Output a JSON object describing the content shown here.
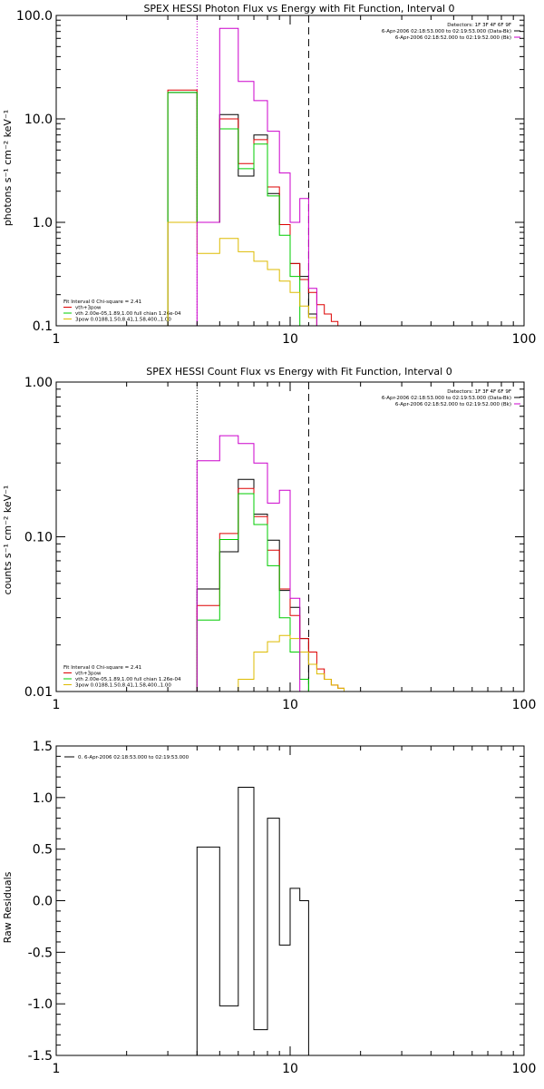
{
  "chart_data": [
    {
      "type": "line",
      "title": "SPEX HESSI Photon Flux vs Energy with Fit Function, Interval 0",
      "ylabel": "photons s⁻¹ cm⁻² keV⁻¹",
      "xlim": [
        1,
        100
      ],
      "ylim": [
        0.1,
        100
      ],
      "xscale": "log",
      "yscale": "log",
      "xticks": [
        "1",
        "10",
        "100"
      ],
      "yticks": [
        "0.1",
        "1.0",
        "10.0",
        "100.0"
      ],
      "ytick_values": [
        0.1,
        1,
        10,
        100
      ],
      "vlines": [
        {
          "x": 4.0,
          "style": "dotted",
          "color": "#cc00cc"
        },
        {
          "x": 12.0,
          "style": "dashed",
          "color": "#000000"
        }
      ],
      "info_lines": [
        "Detectors: 1F 3F 4F 6F 9F",
        "6-Apr-2006 02:18:53.000 to 02:19:53.000 (Data-Bk)",
        "6-Apr-2006 02:18:52.000 to 02:19:52.000 (Bk)"
      ],
      "info_colors": [
        "#000000",
        "#000000",
        "#cc00cc"
      ],
      "fit_lines": [
        "Fit Interval 0   Chi-square = 2.41",
        "vth+3pow",
        "vth 2.00e-05,1.89,1.00  full chian 1.26e-04",
        "3pow 0.0188,1.50,8.41,1.58,400.,1.00"
      ],
      "fit_colors": [
        "#000000",
        "#dd0000",
        "#00cc00",
        "#ddbb00"
      ],
      "edges": [
        3,
        4,
        5,
        6,
        7,
        8,
        9,
        10,
        11,
        12,
        13,
        14,
        15,
        16,
        17,
        18,
        19,
        20
      ],
      "series": [
        {
          "color": "#000000",
          "values": [
            18,
            1,
            11,
            2.8,
            7,
            1.9,
            0.95,
            0.4,
            0.3,
            0.13,
            null,
            null,
            null,
            null,
            null,
            null,
            null
          ]
        },
        {
          "color": "#dd0000",
          "values": [
            19,
            1,
            10,
            3.7,
            6.3,
            2.2,
            0.95,
            0.4,
            0.28,
            0.21,
            0.16,
            0.13,
            0.11,
            null,
            null,
            null,
            null
          ]
        },
        {
          "color": "#00cc00",
          "values": [
            18,
            1,
            8,
            3.3,
            5.7,
            1.8,
            0.75,
            0.3,
            0.1,
            null,
            null,
            null,
            null,
            null,
            null,
            null,
            null
          ]
        },
        {
          "color": "#ddbb00",
          "values": [
            1.0,
            0.5,
            0.7,
            0.52,
            0.42,
            0.35,
            0.27,
            0.21,
            0.155,
            0.12,
            0.1,
            null,
            null,
            null,
            null,
            null,
            null
          ]
        },
        {
          "color": "#cc00cc",
          "values": [
            null,
            1,
            75,
            23,
            15,
            7.6,
            3.0,
            1.0,
            1.7,
            0.23,
            null,
            null,
            null,
            null,
            null,
            null,
            null
          ]
        }
      ]
    },
    {
      "type": "line",
      "title": "SPEX HESSI Count Flux vs Energy with Fit Function, Interval 0",
      "ylabel": "counts s⁻¹ cm⁻² keV⁻¹",
      "xlim": [
        1,
        100
      ],
      "ylim": [
        0.01,
        1
      ],
      "xscale": "log",
      "yscale": "log",
      "xticks": [
        "1",
        "10",
        "100"
      ],
      "yticks": [
        "0.01",
        "0.10",
        "1.00"
      ],
      "ytick_values": [
        0.01,
        0.1,
        1
      ],
      "vlines": [
        {
          "x": 4.0,
          "style": "dotted",
          "color": "#000000"
        },
        {
          "x": 12.0,
          "style": "dashed",
          "color": "#000000"
        }
      ],
      "info_lines": [
        "Detectors: 1F 3F 4F 6F 9F",
        "6-Apr-2006 02:18:53.000 to 02:19:53.000 (Data-Bk)",
        "6-Apr-2006 02:18:52.000 to 02:19:52.000 (Bk)"
      ],
      "info_colors": [
        "#000000",
        "#000000",
        "#cc00cc"
      ],
      "fit_lines": [
        "Fit Interval 0   Chi-square = 2.41",
        "vth+3pow",
        "vth 2.00e-05,1.89,1.00  full chian 1.26e-04",
        "3pow 0.0188,1.50,8.41,1.58,400.,1.00"
      ],
      "fit_colors": [
        "#000000",
        "#dd0000",
        "#00cc00",
        "#ddbb00"
      ],
      "edges": [
        4,
        5,
        6,
        7,
        8,
        9,
        10,
        11,
        12,
        13,
        14,
        15,
        16,
        17,
        18,
        19,
        20
      ],
      "series": [
        {
          "color": "#000000",
          "values": [
            0.046,
            0.08,
            0.235,
            0.14,
            0.095,
            0.045,
            0.035,
            0.022,
            null,
            null,
            null,
            null,
            null,
            null,
            null,
            null
          ]
        },
        {
          "color": "#dd0000",
          "values": [
            0.036,
            0.105,
            0.205,
            0.135,
            0.082,
            0.046,
            0.031,
            0.022,
            0.018,
            0.014,
            0.012,
            0.011,
            0.0105,
            null,
            null,
            null
          ]
        },
        {
          "color": "#00cc00",
          "values": [
            0.029,
            0.096,
            0.19,
            0.12,
            0.065,
            0.03,
            0.018,
            0.012,
            null,
            null,
            null,
            null,
            null,
            null,
            null,
            null
          ]
        },
        {
          "color": "#ddbb00",
          "values": [
            null,
            null,
            0.012,
            0.018,
            0.021,
            0.023,
            0.022,
            0.018,
            0.015,
            0.013,
            0.012,
            0.011,
            0.0105,
            null,
            null,
            null
          ]
        },
        {
          "color": "#cc00cc",
          "values": [
            0.31,
            0.45,
            0.4,
            0.3,
            0.165,
            0.2,
            0.04,
            null,
            null,
            null,
            null,
            null,
            null,
            null,
            null,
            null
          ]
        }
      ]
    },
    {
      "type": "line",
      "title": "",
      "ylabel": "Raw Residuals",
      "xlim": [
        1,
        100
      ],
      "ylim": [
        -1.5,
        1.5
      ],
      "xscale": "log",
      "yscale": "linear",
      "xticks": [
        "1",
        "10",
        "100"
      ],
      "yticks": [
        "-1.5",
        "-1.0",
        "-0.5",
        "0.0",
        "0.5",
        "1.0",
        "1.5"
      ],
      "ytick_values": [
        -1.5,
        -1.0,
        -0.5,
        0.0,
        0.5,
        1.0,
        1.5
      ],
      "legend": "0.  6-Apr-2006 02:18:53.000 to 02:19:53.000",
      "edges": [
        4,
        5,
        6,
        7,
        8,
        9,
        10,
        11,
        12
      ],
      "series": [
        {
          "color": "#000000",
          "values": [
            0.52,
            -1.02,
            1.1,
            -1.25,
            0.8,
            -0.43,
            0.12,
            0.0
          ]
        }
      ]
    }
  ]
}
